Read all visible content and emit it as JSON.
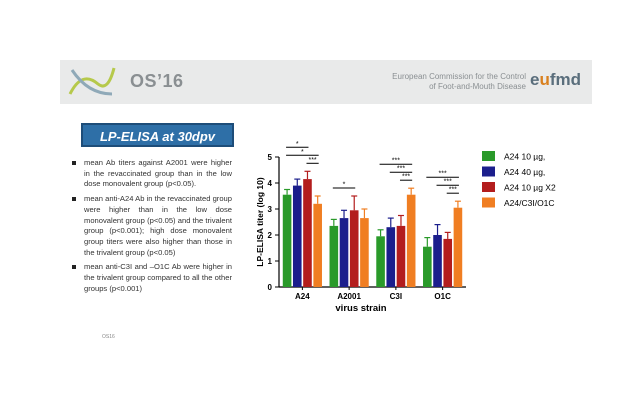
{
  "banner": {
    "logo_text": "OS’16",
    "commission_line1": "European Commission for the Control",
    "commission_line2": "of Foot-and-Mouth Disease",
    "eufmd_left": "e",
    "eufmd_accent": "u",
    "eufmd_right": "fmd"
  },
  "slide": {
    "title": "LP-ELISA at 30dpv",
    "bullets": [
      "mean Ab titers against A2001 were higher in the revaccinated group than in the low dose monovalent group (p<0.05).",
      "mean anti-A24 Ab in the revaccinated group were higher than in the low dose monovalent group (p<0.05) and the trivalent group (p<0.001); high dose monovalent group titers were also higher than those in the trivalent group (p<0.05)",
      "mean anti-C3I and –O1C Ab were higher in the trivalent group compared to all the other groups (p<0.001)"
    ],
    "footer": "OS16"
  },
  "colors": {
    "green": "#2a9a2a",
    "blue": "#1b1e8c",
    "red": "#b31d1d",
    "orange": "#f07e22"
  },
  "chart_data": {
    "type": "bar",
    "categories": [
      "A24",
      "A2001",
      "C3I",
      "O1C"
    ],
    "series": [
      {
        "name": "A24 10 µg,",
        "color": "#2a9a2a",
        "values": [
          3.55,
          2.35,
          1.95,
          1.55
        ],
        "errors": [
          0.2,
          0.25,
          0.25,
          0.35
        ]
      },
      {
        "name": "A24 40 µg,",
        "color": "#1b1e8c",
        "values": [
          3.9,
          2.65,
          2.3,
          2.0
        ],
        "errors": [
          0.25,
          0.3,
          0.35,
          0.4
        ]
      },
      {
        "name": "A24 10 µg X2",
        "color": "#b31d1d",
        "values": [
          4.15,
          2.95,
          2.35,
          1.85
        ],
        "errors": [
          0.3,
          0.55,
          0.4,
          0.25
        ]
      },
      {
        "name": "A24/C3I/O1C",
        "color": "#f07e22",
        "values": [
          3.2,
          2.65,
          3.55,
          3.05
        ],
        "errors": [
          0.3,
          0.35,
          0.25,
          0.25
        ]
      }
    ],
    "xlabel": "virus strain",
    "ylabel": "LP-ELISA titer (log 10)",
    "ylim": [
      0,
      5
    ],
    "yticks": [
      "0",
      "1",
      "2",
      "3",
      "4",
      "5"
    ],
    "legend_position": "right",
    "significance": [
      {
        "category": 0,
        "from_series": 0,
        "to_series": 2,
        "label": "*"
      },
      {
        "category": 0,
        "from_series": 0,
        "to_series": 3,
        "label": "*"
      },
      {
        "category": 0,
        "from_series": 2,
        "to_series": 3,
        "label": "***"
      },
      {
        "category": 1,
        "from_series": 0,
        "to_series": 2,
        "label": "*"
      },
      {
        "category": 2,
        "from_series": 0,
        "to_series": 3,
        "label": "***"
      },
      {
        "category": 2,
        "from_series": 1,
        "to_series": 3,
        "label": "***"
      },
      {
        "category": 2,
        "from_series": 2,
        "to_series": 3,
        "label": "***"
      },
      {
        "category": 3,
        "from_series": 0,
        "to_series": 3,
        "label": "***"
      },
      {
        "category": 3,
        "from_series": 1,
        "to_series": 3,
        "label": "***"
      },
      {
        "category": 3,
        "from_series": 2,
        "to_series": 3,
        "label": "***"
      }
    ]
  }
}
